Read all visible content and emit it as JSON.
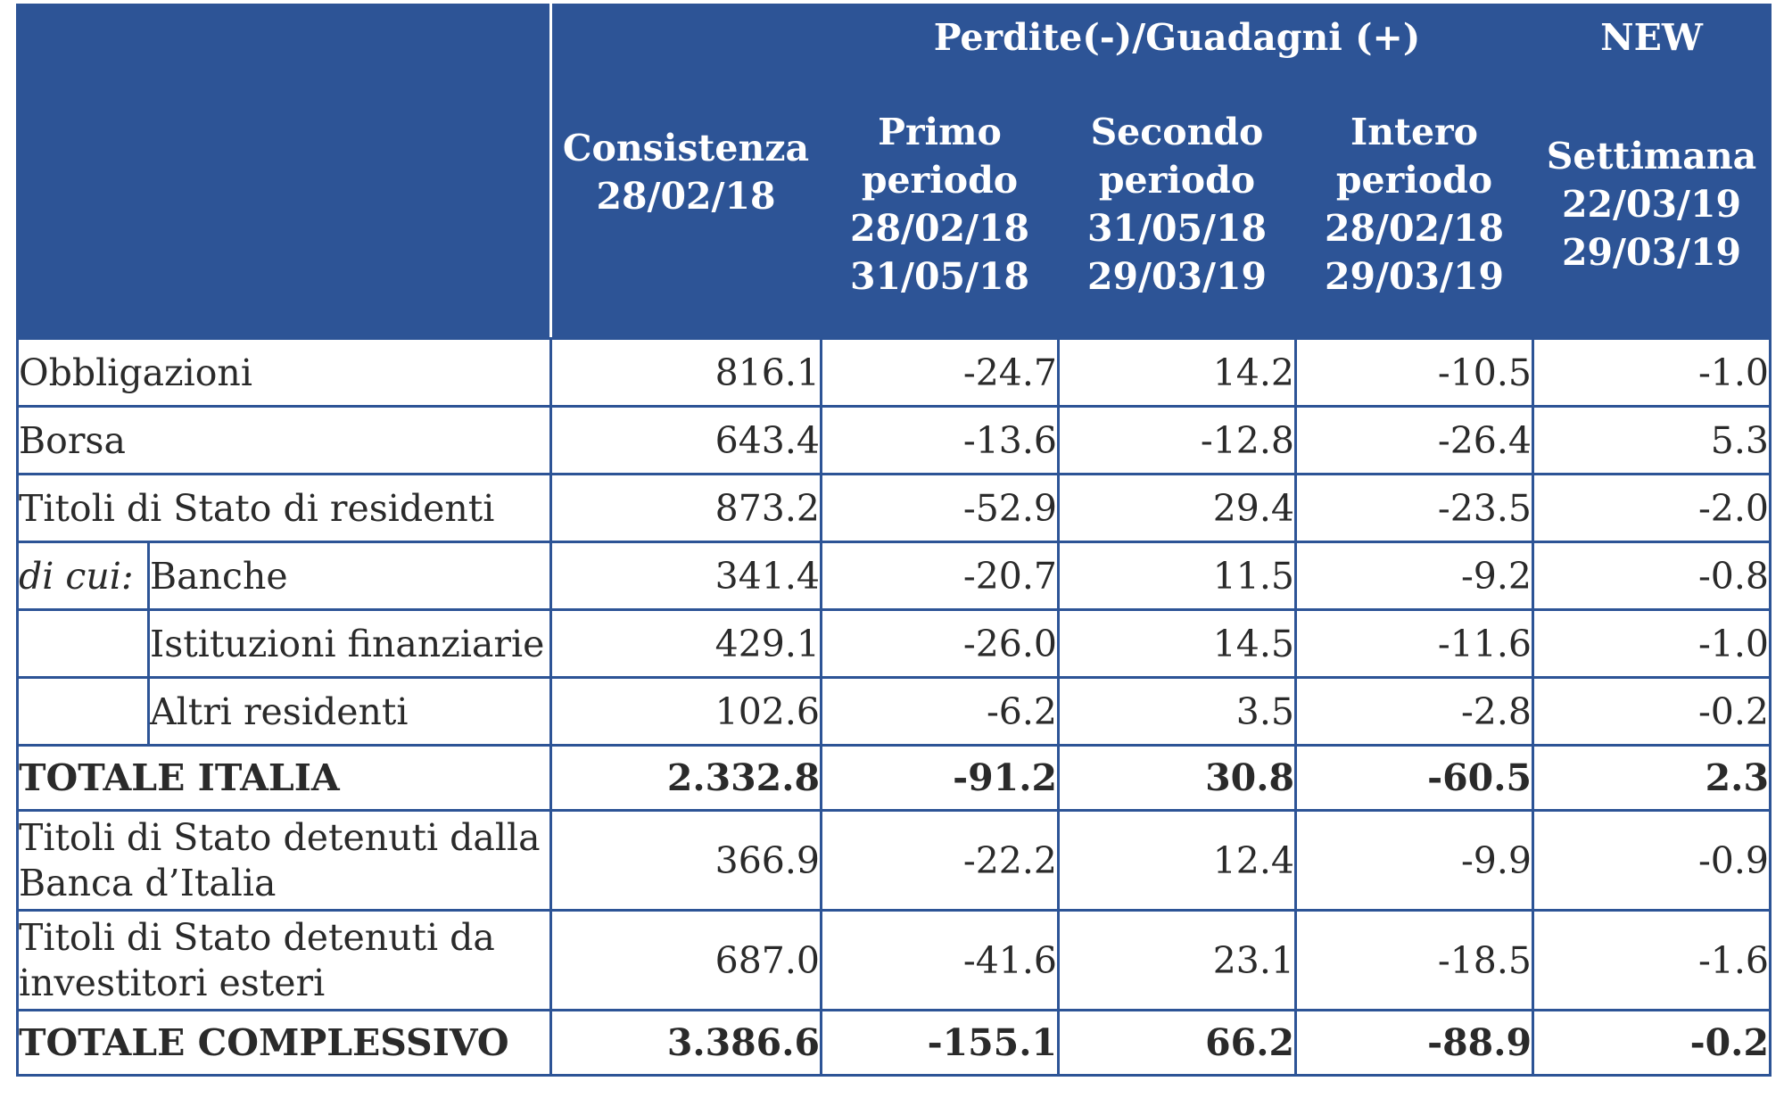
{
  "header": {
    "group_label": "Perdite(-)/Guadagni (+)",
    "new_label": "NEW",
    "col_consistenza": [
      "Consistenza",
      "28/02/18"
    ],
    "col_primo": [
      "Primo",
      "periodo",
      "28/02/18",
      "31/05/18"
    ],
    "col_secondo": [
      "Secondo",
      "periodo",
      "31/05/18",
      "29/03/19"
    ],
    "col_intero": [
      "Intero",
      "periodo",
      "28/02/18",
      "29/03/19"
    ],
    "col_settimana": [
      "Settimana",
      "22/03/19",
      "29/03/19"
    ]
  },
  "rows": {
    "obbligazioni": {
      "label": "Obbligazioni",
      "values": [
        "816.1",
        "-24.7",
        "14.2",
        "-10.5",
        "-1.0"
      ]
    },
    "borsa": {
      "label": "Borsa",
      "values": [
        "643.4",
        "-13.6",
        "-12.8",
        "-26.4",
        "5.3"
      ]
    },
    "titoli_residenti": {
      "label": "Titoli di Stato di residenti",
      "values": [
        "873.2",
        "-52.9",
        "29.4",
        "-23.5",
        "-2.0"
      ]
    },
    "banche": {
      "prefix": "di cui:",
      "label": "Banche",
      "values": [
        "341.4",
        "-20.7",
        "11.5",
        "-9.2",
        "-0.8"
      ]
    },
    "istituzioni": {
      "label": "Istituzioni finanziarie",
      "values": [
        "429.1",
        "-26.0",
        "14.5",
        "-11.6",
        "-1.0"
      ]
    },
    "altri": {
      "label": "Altri residenti",
      "values": [
        "102.6",
        "-6.2",
        "3.5",
        "-2.8",
        "-0.2"
      ]
    },
    "totale_italia": {
      "label": "TOTALE ITALIA",
      "values": [
        "2.332.8",
        "-91.2",
        "30.8",
        "-60.5",
        "2.3"
      ]
    },
    "banca_italia": {
      "label": [
        "Titoli di Stato detenuti dalla",
        "Banca d’Italia"
      ],
      "values": [
        "366.9",
        "-22.2",
        "12.4",
        "-9.9",
        "-0.9"
      ]
    },
    "esteri": {
      "label": [
        "Titoli di Stato detenuti da",
        "investitori esteri"
      ],
      "values": [
        "687.0",
        "-41.6",
        "23.1",
        "-18.5",
        "-1.6"
      ]
    },
    "totale_complessivo": {
      "label": "TOTALE COMPLESSIVO",
      "values": [
        "3.386.6",
        "-155.1",
        "66.2",
        "-88.9",
        "-0.2"
      ]
    }
  }
}
